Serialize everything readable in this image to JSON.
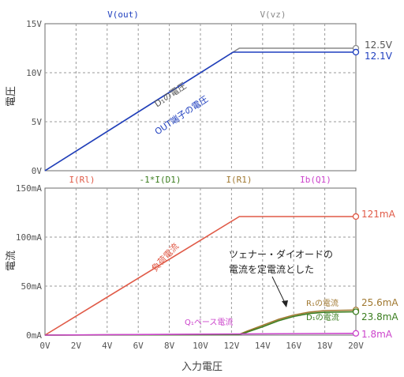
{
  "chart_data": [
    {
      "type": "line",
      "ylabel": "電圧",
      "ylim": [
        0,
        15
      ],
      "yticks": [
        "0V",
        "5V",
        "10V",
        "15V"
      ],
      "xlim": [
        0,
        20
      ],
      "grid": true,
      "trace_labels": [
        {
          "name": "V(out)",
          "color": "#1f3fbf"
        },
        {
          "name": "V(vz)",
          "color": "#8a8a8a"
        }
      ],
      "series": [
        {
          "name": "V(vz)",
          "color": "#8a8a8a",
          "x": [
            0,
            12.5,
            20
          ],
          "values": [
            0,
            12.5,
            12.5
          ]
        },
        {
          "name": "V(out)",
          "color": "#1f3fbf",
          "x": [
            0,
            12.1,
            20
          ],
          "values": [
            0,
            12.1,
            12.1
          ]
        }
      ],
      "end_labels": [
        {
          "text": "12.5V",
          "color": "#555555"
        },
        {
          "text": "12.1V",
          "color": "#1f3fbf"
        }
      ],
      "annotations": [
        {
          "text": "D₁の電圧",
          "color": "#555555"
        },
        {
          "text": "OUT端子の電圧",
          "color": "#1f3fbf"
        }
      ]
    },
    {
      "type": "line",
      "ylabel": "電流",
      "xlabel": "入力電圧",
      "ylim": [
        0,
        150
      ],
      "yticks": [
        "0mA",
        "50mA",
        "100mA",
        "150mA"
      ],
      "xlim": [
        0,
        20
      ],
      "xticks": [
        "0V",
        "2V",
        "4V",
        "6V",
        "8V",
        "10V",
        "12V",
        "14V",
        "16V",
        "18V",
        "20V"
      ],
      "grid": true,
      "trace_labels": [
        {
          "name": "I(Rl)",
          "color": "#e05a47"
        },
        {
          "name": "-1*I(D1)",
          "color": "#3a7d1e"
        },
        {
          "name": "I(R1)",
          "color": "#a07830"
        },
        {
          "name": "Ib(Q1)",
          "color": "#cc44cc"
        }
      ],
      "series": [
        {
          "name": "I(Rl)",
          "color": "#e05a47",
          "x": [
            0,
            12.5,
            20
          ],
          "values": [
            0,
            121,
            121
          ]
        },
        {
          "name": "I(R1)",
          "color": "#a07830",
          "x": [
            0,
            12.5,
            13,
            14,
            15,
            16,
            17,
            18,
            20
          ],
          "values": [
            0,
            0.8,
            4,
            10,
            16,
            20.5,
            23.5,
            25,
            25.6
          ]
        },
        {
          "name": "-1*I(D1)",
          "color": "#3a7d1e",
          "x": [
            0,
            12.5,
            13,
            14,
            15,
            16,
            17,
            18,
            20
          ],
          "values": [
            0,
            0.5,
            3,
            8.5,
            14.5,
            19,
            22,
            23.3,
            23.8
          ]
        },
        {
          "name": "Ib(Q1)",
          "color": "#cc44cc",
          "x": [
            0,
            12.5,
            20
          ],
          "values": [
            0,
            1.2,
            1.8
          ]
        }
      ],
      "end_labels": [
        {
          "text": "121mA",
          "color": "#e05a47"
        },
        {
          "text": "25.6mA",
          "color": "#a07830"
        },
        {
          "text": "23.8mA",
          "color": "#3a7d1e"
        },
        {
          "text": "1.8mA",
          "color": "#cc44cc"
        }
      ],
      "annotations": [
        {
          "text": "負荷電流",
          "color": "#e05a47"
        },
        {
          "text": "ツェナー・ダイオードの",
          "color": "#222222"
        },
        {
          "text": "電流を定電流とした",
          "color": "#222222"
        },
        {
          "text": "R₁の電流",
          "color": "#a07830"
        },
        {
          "text": "D₁の電流",
          "color": "#3a7d1e"
        },
        {
          "text": "Q₁ベース電流",
          "color": "#cc44cc"
        }
      ]
    }
  ]
}
